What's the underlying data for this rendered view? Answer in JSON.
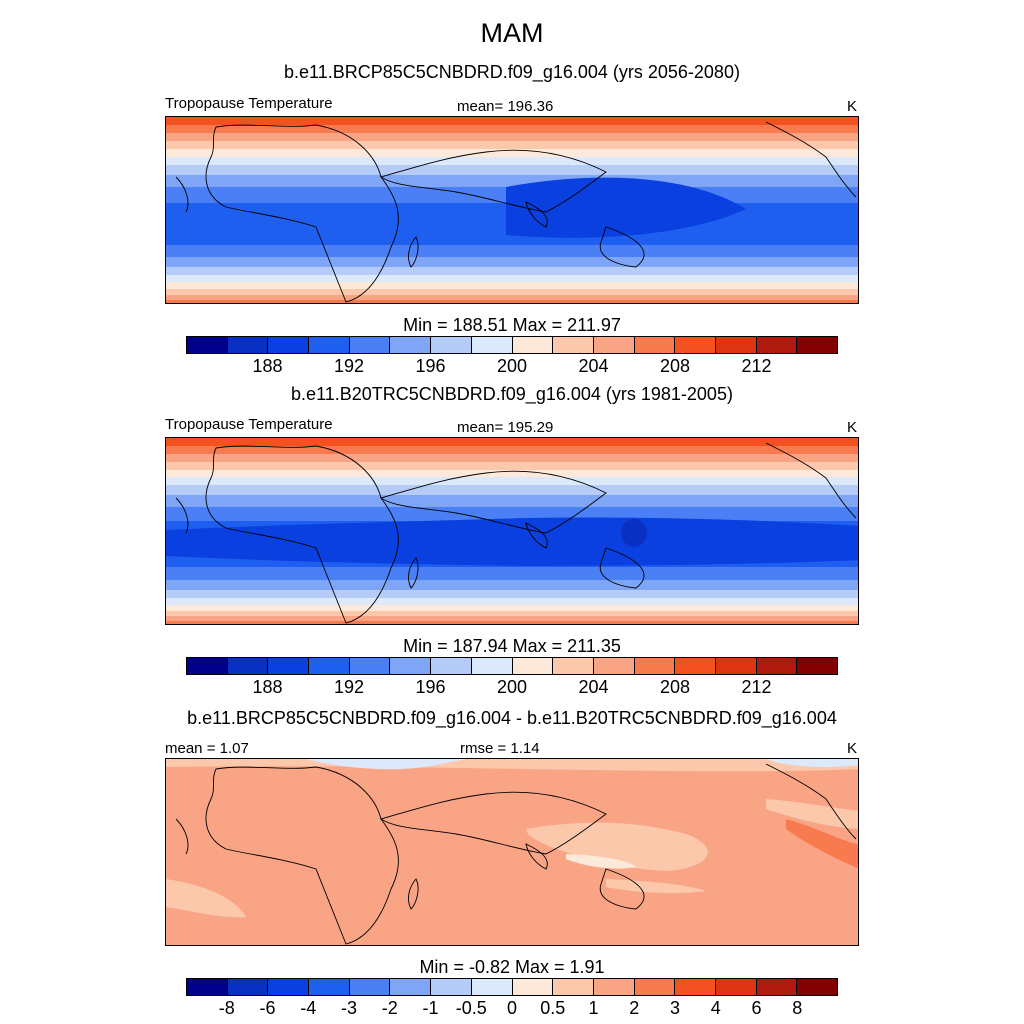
{
  "title": "MAM",
  "colors": [
    "#00008b",
    "#0a2fc3",
    "#0a3fe0",
    "#1f5ff0",
    "#4a7ff5",
    "#7fa5f7",
    "#b5cbf8",
    "#dce9fb",
    "#fde9da",
    "#fbc8ac",
    "#f9a585",
    "#f87a4f",
    "#f45120",
    "#dd3411",
    "#b0190d",
    "#820000"
  ],
  "panels": [
    {
      "title": "b.e11.BRCP85C5CNBDRD.f09_g16.004 (yrs 2056-2080)",
      "left_label": "Tropopause Temperature",
      "center_label": "mean= 196.36",
      "right_label": "K",
      "minmax": "Min = 188.51 Max = 211.97",
      "tick_labels": [
        "188",
        "192",
        "196",
        "200",
        "204",
        "208",
        "212"
      ]
    },
    {
      "title": "b.e11.B20TRC5CNBDRD.f09_g16.004 (yrs 1981-2005)",
      "left_label": "Tropopause Temperature",
      "center_label": "mean= 195.29",
      "right_label": "K",
      "minmax": "Min = 187.94 Max = 211.35",
      "tick_labels": [
        "188",
        "192",
        "196",
        "200",
        "204",
        "208",
        "212"
      ]
    },
    {
      "title": "b.e11.BRCP85C5CNBDRD.f09_g16.004 - b.e11.B20TRC5CNBDRD.f09_g16.004",
      "left_label": "mean =   1.07",
      "center_label": "rmse =   1.14",
      "right_label": "K",
      "minmax": "Min =  -0.82 Max =   1.91",
      "tick_labels": [
        "-8",
        "-6",
        "-4",
        "-3",
        "-2",
        "-1",
        "-0.5",
        "0",
        "0.5",
        "1",
        "2",
        "3",
        "4",
        "6",
        "8"
      ]
    }
  ],
  "chart_data": [
    {
      "type": "heatmap",
      "title": "b.e11.BRCP85C5CNBDRD.f09_g16.004 (yrs 2056-2080)",
      "variable": "Tropopause Temperature",
      "units": "K",
      "mean": 196.36,
      "min": 188.51,
      "max": 211.97,
      "contour_levels": [
        186,
        188,
        190,
        192,
        194,
        196,
        198,
        200,
        202,
        204,
        206,
        208,
        210,
        212,
        214
      ]
    },
    {
      "type": "heatmap",
      "title": "b.e11.B20TRC5CNBDRD.f09_g16.004 (yrs 1981-2005)",
      "variable": "Tropopause Temperature",
      "units": "K",
      "mean": 195.29,
      "min": 187.94,
      "max": 211.35,
      "contour_levels": [
        186,
        188,
        190,
        192,
        194,
        196,
        198,
        200,
        202,
        204,
        206,
        208,
        210,
        212,
        214
      ]
    },
    {
      "type": "heatmap",
      "title": "b.e11.BRCP85C5CNBDRD.f09_g16.004 - b.e11.B20TRC5CNBDRD.f09_g16.004",
      "units": "K",
      "mean": 1.07,
      "rmse": 1.14,
      "min": -0.82,
      "max": 1.91,
      "contour_levels": [
        -8,
        -6,
        -4,
        -3,
        -2,
        -1,
        -0.5,
        0,
        0.5,
        1,
        2,
        3,
        4,
        6,
        8
      ]
    }
  ]
}
